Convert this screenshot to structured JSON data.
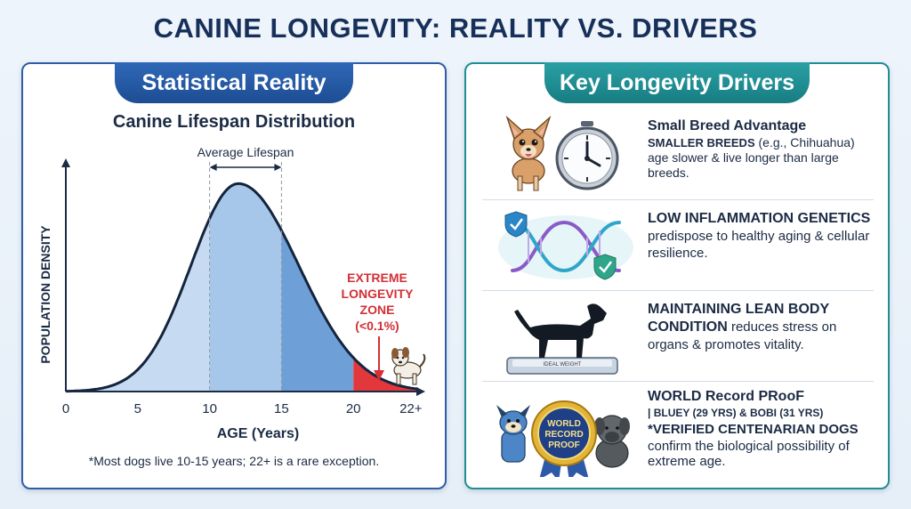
{
  "title": "CANINE LONGEVITY: REALITY VS. DRIVERS",
  "left_panel": {
    "header": "Statistical Reality",
    "footnote": "*Most dogs live 10-15 years; 22+ is a rare exception."
  },
  "right_panel": {
    "header": "Key Longevity Drivers",
    "drivers": [
      {
        "heading": "Small Breed Advantage",
        "bold_lead": "SMALLER BREEDS",
        "lead_suffix": " (e.g., Chihuahua)",
        "body": "age slower & live longer than large breeds.",
        "icons": [
          "chihuahua-icon",
          "clock-icon"
        ]
      },
      {
        "heading": "LOW INFLAMMATION GENETICS",
        "body": "predispose to healthy aging & cellular resilience.",
        "icons": [
          "dna-helix-icon",
          "shield-check-icon"
        ]
      },
      {
        "heading_line1": "MAINTAINING LEAN BODY",
        "heading_line2": "CONDITION",
        "body_suffix": " reduces stress on organs & promotes vitality.",
        "scale_label": "IDEAL WEIGHT",
        "icons": [
          "dog-silhouette-icon",
          "scale-icon"
        ]
      },
      {
        "heading": "WORLD Record PRooF",
        "record_line": "| BLUEY (29 YRS) & BOBI (31 YRS)",
        "bold_line": "*VERIFIED CENTENARIAN DOGS",
        "body": "confirm the biological possibility of extreme age.",
        "badge_lines": [
          "WORLD",
          "RECORD",
          "PROOF"
        ],
        "icons": [
          "cartoon-dog-icon",
          "medal-icon",
          "mastiff-icon"
        ]
      }
    ]
  },
  "chart_data": {
    "type": "area",
    "title": "Canine Lifespan Distribution",
    "xlabel": "AGE (Years)",
    "ylabel": "POPULATION DENSITY",
    "x_ticks": [
      "0",
      "5",
      "10",
      "15",
      "20",
      "22+"
    ],
    "x_tick_values": [
      0,
      5,
      10,
      15,
      20,
      24
    ],
    "xlim": [
      0,
      25
    ],
    "distribution": {
      "peak_age": 12,
      "sd_left": 3.3,
      "sd_right": 4.2
    },
    "average_lifespan_range": [
      10,
      15
    ],
    "average_label": "Average Lifespan",
    "extreme_zone_start": 20,
    "extreme_label_lines": [
      "EXTREME",
      "LONGEVITY",
      "ZONE",
      "(<0.1%)"
    ],
    "colors": {
      "light": "#c6dbf1",
      "mid": "#a7c7ea",
      "dark": "#6e9fd6",
      "extreme": "#e2383c",
      "curve": "#14243d"
    }
  }
}
